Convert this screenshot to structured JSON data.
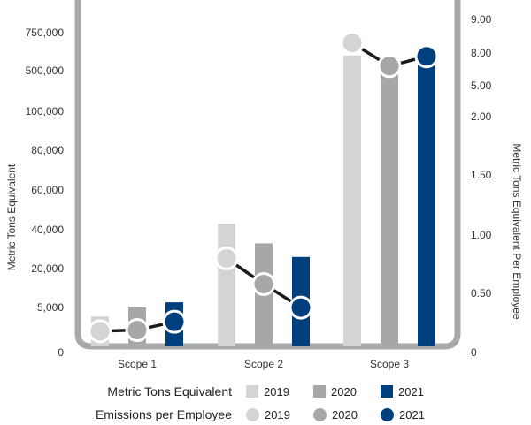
{
  "chart_data": {
    "type": "bar",
    "title": "",
    "categories": [
      "Scope 1",
      "Scope 2",
      "Scope 3"
    ],
    "ylabel_left": "Metric Tons Equivalent",
    "ylabel_right": "Metric Tons Equivalent Per Employee",
    "left_ticks": [
      "0",
      "5,000",
      "20,000",
      "40,000",
      "60,000",
      "80,000",
      "100,000",
      "500,000",
      "750,000"
    ],
    "right_ticks": [
      "0",
      "0.50",
      "1.00",
      "1.50",
      "2.00",
      "5.00",
      "8.00",
      "9.00"
    ],
    "series": [
      {
        "name": "2019",
        "kind": "bar",
        "color": "#d3d4d6",
        "values": [
          4000,
          43000,
          600000
        ]
      },
      {
        "name": "2020",
        "kind": "bar",
        "color": "#a6a7a9",
        "values": [
          5000,
          33000,
          520000
        ]
      },
      {
        "name": "2021",
        "kind": "bar",
        "color": "#003f7d",
        "values": [
          7000,
          26000,
          540000
        ]
      }
    ],
    "line_series": [
      {
        "name": "2019",
        "color": "#d3d4d6",
        "values": [
          0.18,
          0.8,
          8.3
        ]
      },
      {
        "name": "2020",
        "color": "#a6a7a9",
        "values": [
          0.19,
          0.58,
          6.8
        ]
      },
      {
        "name": "2021",
        "color": "#003f7d",
        "values": [
          0.26,
          0.38,
          7.7
        ]
      }
    ]
  },
  "legend": {
    "bars_title": "Metric Tons Equivalent",
    "dots_title": "Emissions per Employee",
    "bar_items": [
      {
        "label": "2019",
        "color": "#d3d4d6"
      },
      {
        "label": "2020",
        "color": "#a6a7a9"
      },
      {
        "label": "2021",
        "color": "#003f7d"
      }
    ],
    "dot_items": [
      {
        "label": "2019",
        "color": "#d3d4d6"
      },
      {
        "label": "2020",
        "color": "#a6a7a9"
      },
      {
        "label": "2021",
        "color": "#003f7d"
      }
    ]
  }
}
